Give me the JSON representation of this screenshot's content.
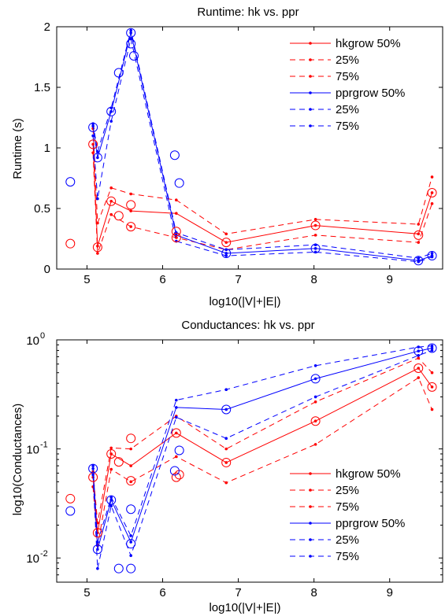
{
  "colors": {
    "hk": "#ff0000",
    "ppr": "#0000ff",
    "axis": "#000000"
  },
  "chart_data": [
    {
      "type": "line",
      "title": "Runtime: hk vs. ppr",
      "xlabel": "log10(|V|+|E|)",
      "ylabel": "Runtime (s)",
      "xlim": [
        4.6,
        9.7
      ],
      "ylim": [
        0,
        2
      ],
      "yscale": "linear",
      "grid": false,
      "legend_position": "top-right",
      "x_ticks": [
        5,
        6,
        7,
        8,
        9
      ],
      "y_ticks": [
        {
          "v": 0,
          "label": "0"
        },
        {
          "v": 0.5,
          "label": "0.5"
        },
        {
          "v": 1,
          "label": "1"
        },
        {
          "v": 1.5,
          "label": "1.5"
        },
        {
          "v": 2,
          "label": "2"
        }
      ],
      "series": [
        {
          "name": "hkgrow 50%",
          "color": "hk",
          "dash": "solid",
          "x": [
            5.08,
            5.14,
            5.32,
            5.58,
            6.18,
            6.84,
            8.02,
            9.38,
            9.56
          ],
          "y": [
            1.03,
            0.19,
            0.56,
            0.48,
            0.46,
            0.22,
            0.36,
            0.29,
            0.63
          ]
        },
        {
          "name": "25%",
          "color": "hk",
          "dash": "dashed",
          "x": [
            5.08,
            5.14,
            5.32,
            5.58,
            6.18,
            6.84,
            8.02,
            9.38,
            9.56
          ],
          "y": [
            0.96,
            0.13,
            0.45,
            0.35,
            0.26,
            0.16,
            0.28,
            0.22,
            0.54
          ]
        },
        {
          "name": "75%",
          "color": "hk",
          "dash": "dashed",
          "x": [
            5.08,
            5.14,
            5.32,
            5.58,
            6.18,
            6.84,
            8.02,
            9.38,
            9.56
          ],
          "y": [
            1.16,
            0.38,
            0.67,
            0.62,
            0.57,
            0.29,
            0.41,
            0.37,
            0.76
          ]
        },
        {
          "name": "pprgrow 50%",
          "color": "ppr",
          "dash": "solid",
          "x": [
            5.08,
            5.14,
            5.32,
            5.58,
            6.18,
            6.84,
            8.02,
            9.38,
            9.56
          ],
          "y": [
            1.18,
            0.92,
            1.3,
            1.95,
            0.28,
            0.13,
            0.17,
            0.07,
            0.11
          ]
        },
        {
          "name": "25%",
          "color": "ppr",
          "dash": "dashed",
          "x": [
            5.08,
            5.14,
            5.32,
            5.58,
            6.18,
            6.84,
            8.02,
            9.38,
            9.56
          ],
          "y": [
            1.1,
            0.58,
            1.22,
            1.9,
            0.23,
            0.11,
            0.14,
            0.06,
            0.1
          ]
        },
        {
          "name": "75%",
          "color": "ppr",
          "dash": "dashed",
          "x": [
            5.08,
            5.14,
            5.32,
            5.58,
            6.18,
            6.84,
            8.02,
            9.38,
            9.56
          ],
          "y": [
            1.2,
            0.97,
            1.33,
            1.97,
            0.3,
            0.16,
            0.2,
            0.09,
            0.13
          ]
        }
      ],
      "markers": [
        {
          "color": "hk",
          "x": [
            4.78,
            5.08,
            5.14,
            5.32,
            5.42,
            5.58,
            5.58,
            6.18,
            6.18,
            6.84,
            8.02,
            9.38,
            9.56
          ],
          "y": [
            0.21,
            1.03,
            0.18,
            0.56,
            0.44,
            0.53,
            0.35,
            0.26,
            0.31,
            0.22,
            0.36,
            0.28,
            0.63
          ]
        },
        {
          "color": "ppr",
          "x": [
            4.78,
            5.08,
            5.14,
            5.32,
            5.42,
            5.58,
            5.58,
            5.62,
            6.16,
            6.22,
            6.84,
            8.02,
            9.38,
            9.56
          ],
          "y": [
            0.72,
            1.17,
            0.92,
            1.3,
            1.62,
            1.95,
            1.86,
            1.76,
            0.94,
            0.71,
            0.13,
            0.17,
            0.07,
            0.11
          ]
        }
      ]
    },
    {
      "type": "line",
      "title": "Conductances: hk vs. ppr",
      "xlabel": "log10(|V|+|E|)",
      "ylabel": "log10(Conductances)",
      "xlim": [
        4.6,
        9.7
      ],
      "ylim": [
        0.006,
        1
      ],
      "yscale": "log",
      "grid": false,
      "legend_position": "bottom-right",
      "x_ticks": [
        5,
        6,
        7,
        8,
        9
      ],
      "y_ticks": [
        {
          "v": 0.01,
          "label": "10",
          "exp": "-2"
        },
        {
          "v": 0.1,
          "label": "10",
          "exp": "-1"
        },
        {
          "v": 1,
          "label": "10",
          "exp": "0"
        }
      ],
      "series": [
        {
          "name": "hkgrow 50%",
          "color": "hk",
          "dash": "solid",
          "x": [
            5.08,
            5.14,
            5.32,
            5.58,
            6.18,
            6.84,
            8.02,
            9.38,
            9.56
          ],
          "y": [
            0.055,
            0.017,
            0.09,
            0.07,
            0.14,
            0.075,
            0.18,
            0.55,
            0.37
          ]
        },
        {
          "name": "25%",
          "color": "hk",
          "dash": "dashed",
          "x": [
            5.08,
            5.14,
            5.32,
            5.58,
            6.18,
            6.84,
            8.02,
            9.38,
            9.56
          ],
          "y": [
            0.045,
            0.013,
            0.065,
            0.05,
            0.085,
            0.049,
            0.11,
            0.45,
            0.23
          ]
        },
        {
          "name": "75%",
          "color": "hk",
          "dash": "dashed",
          "x": [
            5.08,
            5.14,
            5.32,
            5.58,
            6.18,
            6.84,
            8.02,
            9.38,
            9.56
          ],
          "y": [
            0.062,
            0.021,
            0.102,
            0.1,
            0.2,
            0.1,
            0.27,
            0.68,
            0.5
          ]
        },
        {
          "name": "pprgrow 50%",
          "color": "ppr",
          "dash": "solid",
          "x": [
            5.08,
            5.14,
            5.32,
            5.58,
            6.18,
            6.84,
            8.02,
            9.38,
            9.56
          ],
          "y": [
            0.066,
            0.012,
            0.034,
            0.014,
            0.24,
            0.23,
            0.44,
            0.79,
            0.84
          ]
        },
        {
          "name": "25%",
          "color": "ppr",
          "dash": "dashed",
          "x": [
            5.08,
            5.14,
            5.32,
            5.58,
            6.18,
            6.84,
            8.02,
            9.38,
            9.56
          ],
          "y": [
            0.058,
            0.008,
            0.03,
            0.0105,
            0.195,
            0.125,
            0.3,
            0.72,
            0.8
          ]
        },
        {
          "name": "75%",
          "color": "ppr",
          "dash": "dashed",
          "x": [
            5.08,
            5.14,
            5.32,
            5.58,
            6.18,
            6.84,
            8.02,
            9.38,
            9.56
          ],
          "y": [
            0.07,
            0.014,
            0.036,
            0.016,
            0.28,
            0.35,
            0.58,
            0.86,
            0.88
          ]
        }
      ],
      "markers": [
        {
          "color": "hk",
          "x": [
            4.78,
            5.08,
            5.14,
            5.32,
            5.42,
            5.58,
            5.58,
            6.18,
            6.18,
            6.22,
            6.84,
            8.02,
            9.38,
            9.56
          ],
          "y": [
            0.035,
            0.055,
            0.017,
            0.09,
            0.076,
            0.125,
            0.051,
            0.055,
            0.14,
            0.058,
            0.075,
            0.18,
            0.55,
            0.37
          ]
        },
        {
          "color": "ppr",
          "x": [
            4.78,
            5.08,
            5.14,
            5.32,
            5.42,
            5.58,
            5.58,
            5.58,
            6.16,
            6.22,
            6.84,
            8.02,
            9.38,
            9.56
          ],
          "y": [
            0.027,
            0.066,
            0.012,
            0.034,
            0.008,
            0.0135,
            0.028,
            0.008,
            0.063,
            0.097,
            0.23,
            0.44,
            0.79,
            0.84
          ]
        }
      ]
    }
  ]
}
